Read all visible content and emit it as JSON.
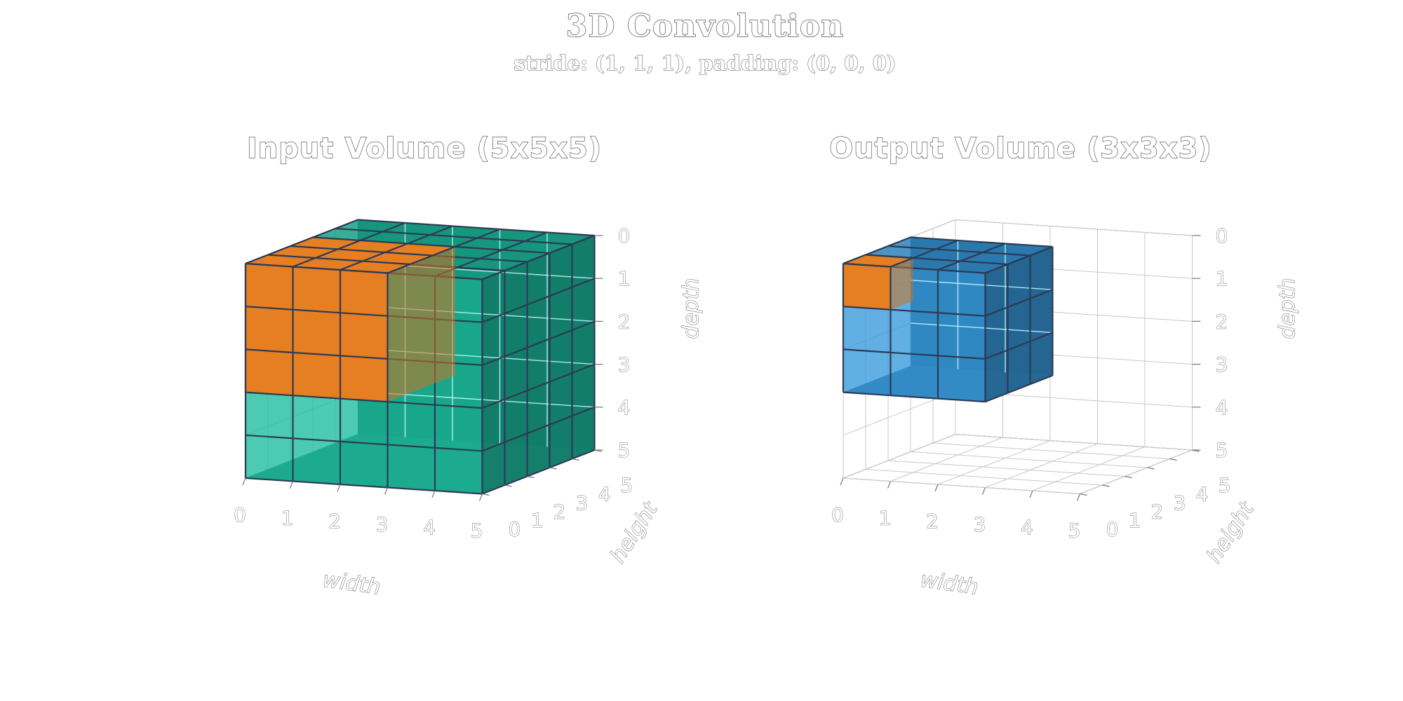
{
  "figure": {
    "title": "3D Convolution",
    "subtitle": "stride: (1, 1, 1), padding: (0, 0, 0)"
  },
  "input_panel": {
    "title": "Input Volume (5x5x5)",
    "volume_size": [
      5,
      5,
      5
    ],
    "highlight_size": [
      3,
      3,
      3
    ],
    "highlight_origin": [
      0,
      0,
      0
    ],
    "xlabel": "width",
    "ylabel": "height",
    "zlabel": "depth",
    "xticks": [
      "0",
      "1",
      "2",
      "3",
      "4",
      "5"
    ],
    "yticks": [
      "0",
      "1",
      "2",
      "3",
      "4",
      "5"
    ],
    "zticks": [
      "0",
      "1",
      "2",
      "3",
      "4",
      "5"
    ],
    "volume_color": "#1abc9c",
    "highlight_color": "#e67e22"
  },
  "output_panel": {
    "title": "Output Volume (3x3x3)",
    "volume_size": [
      3,
      3,
      3
    ],
    "highlight_size": [
      1,
      1,
      1
    ],
    "highlight_origin": [
      0,
      0,
      0
    ],
    "xlabel": "width",
    "ylabel": "height",
    "zlabel": "depth",
    "xticks": [
      "0",
      "1",
      "2",
      "3",
      "4",
      "5"
    ],
    "yticks": [
      "0",
      "1",
      "2",
      "3",
      "4",
      "5"
    ],
    "zticks": [
      "0",
      "1",
      "2",
      "3",
      "4",
      "5"
    ],
    "volume_color": "#3498db",
    "highlight_color": "#e67e22"
  },
  "axis_limits": {
    "x": [
      0,
      5
    ],
    "y": [
      0,
      5
    ],
    "z": [
      0,
      5
    ]
  }
}
